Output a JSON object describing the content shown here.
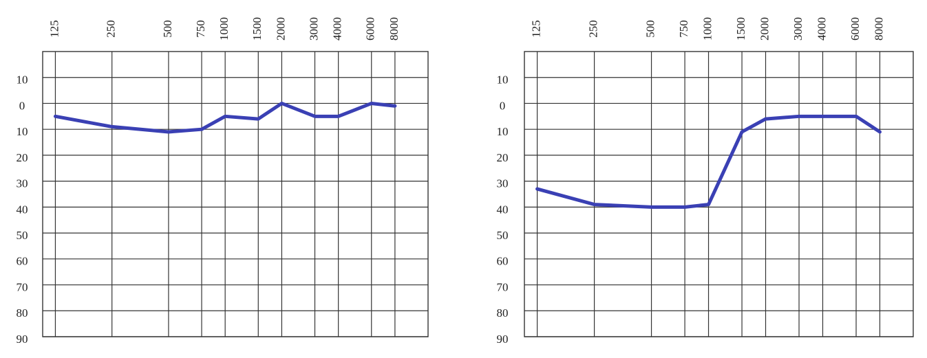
{
  "chart_data": [
    {
      "type": "line",
      "xscale": "log",
      "y_inverted": true,
      "grid": true,
      "color": "#3a40b4",
      "x": [
        125,
        250,
        500,
        750,
        1000,
        1500,
        2000,
        3000,
        4000,
        6000,
        8000
      ],
      "values": [
        5,
        9,
        11,
        10,
        5,
        6,
        0,
        5,
        5,
        0,
        1
      ],
      "xlim": [
        107,
        12000
      ],
      "xticks": [
        125,
        250,
        500,
        750,
        1000,
        1500,
        2000,
        3000,
        4000,
        6000,
        8000
      ],
      "ylim": [
        -20,
        90
      ],
      "yticks": [
        {
          "value": -10,
          "label": "10"
        },
        0,
        10,
        20,
        30,
        40,
        50,
        60,
        70,
        80,
        90
      ]
    },
    {
      "type": "line",
      "xscale": "log",
      "y_inverted": true,
      "grid": true,
      "color": "#3a40b4",
      "x": [
        125,
        250,
        500,
        750,
        1000,
        1500,
        2000,
        3000,
        4000,
        6000,
        8000
      ],
      "values": [
        33,
        39,
        40,
        40,
        39,
        11,
        6,
        5,
        5,
        5,
        11
      ],
      "xlim": [
        107,
        12000
      ],
      "xticks": [
        125,
        250,
        500,
        750,
        1000,
        1500,
        2000,
        3000,
        4000,
        6000,
        8000
      ],
      "ylim": [
        -20,
        90
      ],
      "yticks": [
        {
          "value": -10,
          "label": "10"
        },
        0,
        10,
        20,
        30,
        40,
        50,
        60,
        70,
        80,
        90
      ]
    }
  ]
}
